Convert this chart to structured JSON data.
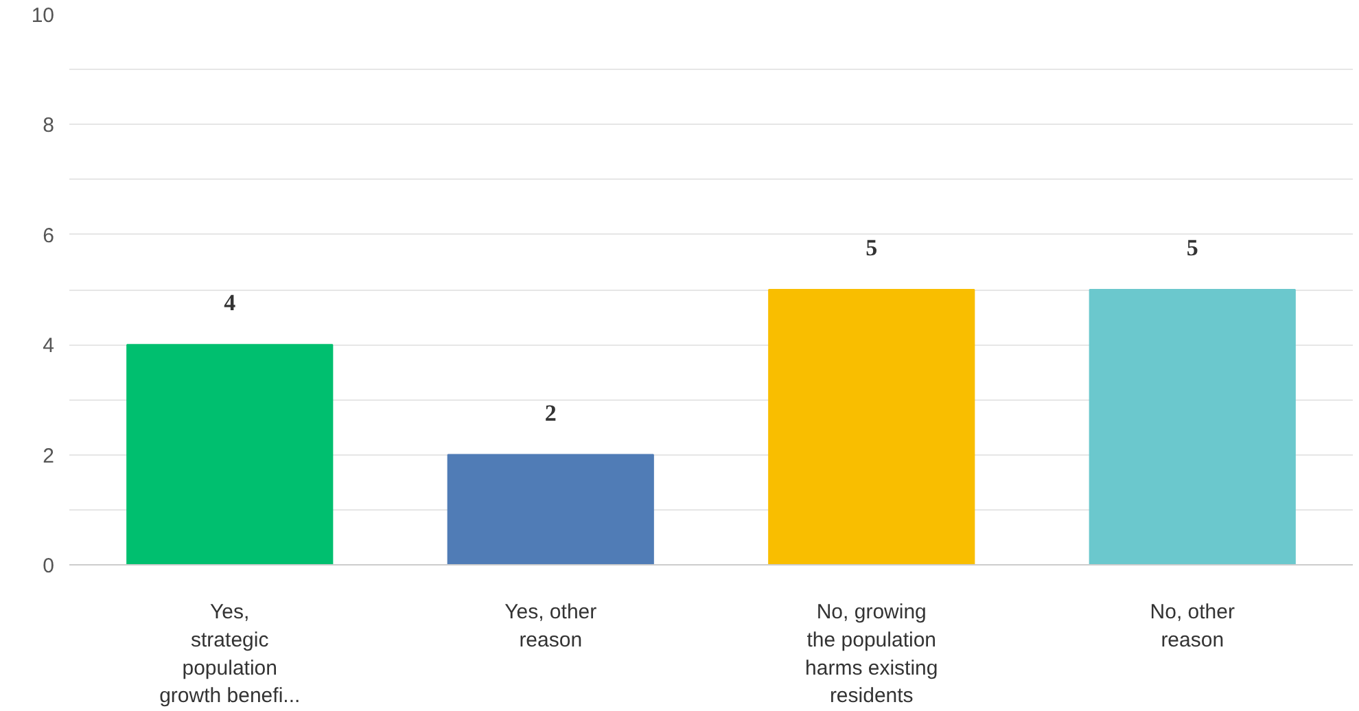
{
  "chart_data": {
    "type": "bar",
    "categories": [
      "Yes,\nstrategic\npopulation\ngrowth benefi...",
      "Yes, other\nreason",
      "No, growing\nthe population\nharms existing\nresidents",
      "No, other\nreason"
    ],
    "values": [
      4,
      2,
      5,
      5
    ],
    "colors": [
      "#00bf6f",
      "#507cb6",
      "#f9be00",
      "#6bc8cd"
    ],
    "ylim": [
      0,
      10
    ],
    "yticks": [
      0,
      {
        "value": 1,
        "label": null
      },
      2,
      {
        "value": 3,
        "label": null
      },
      4,
      {
        "value": 5,
        "label": null
      },
      6,
      {
        "value": 7,
        "label": null
      },
      8,
      {
        "value": 9,
        "label": null
      },
      10
    ],
    "grid": "y",
    "data_labels": true
  }
}
